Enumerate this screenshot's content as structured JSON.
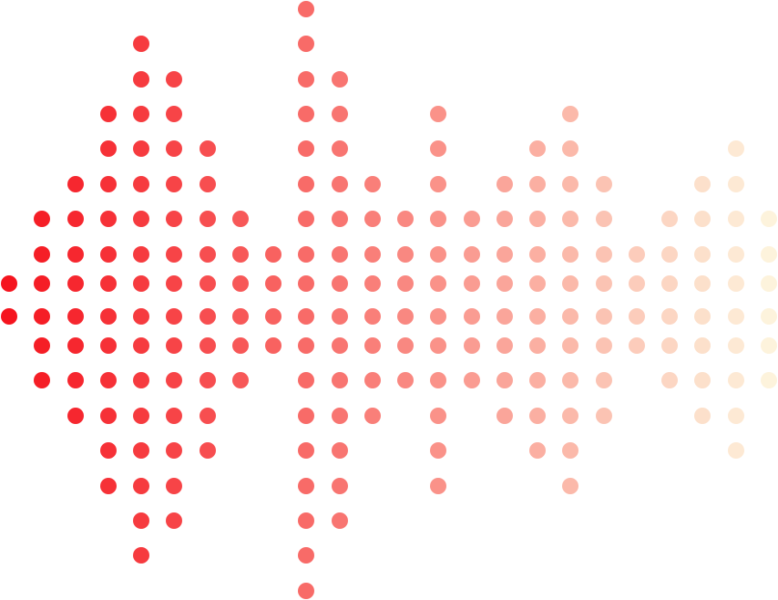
{
  "graphic": {
    "type": "dot-matrix-soundwave",
    "column_levels": [
      0,
      2,
      3,
      5,
      7,
      6,
      4,
      2,
      1,
      8,
      6,
      3,
      2,
      5,
      2,
      3,
      4,
      5,
      3,
      1,
      2,
      3,
      4,
      2
    ],
    "color_start": "#f5141e",
    "color_end": "#fdf3dc",
    "background": "#ffffff"
  }
}
